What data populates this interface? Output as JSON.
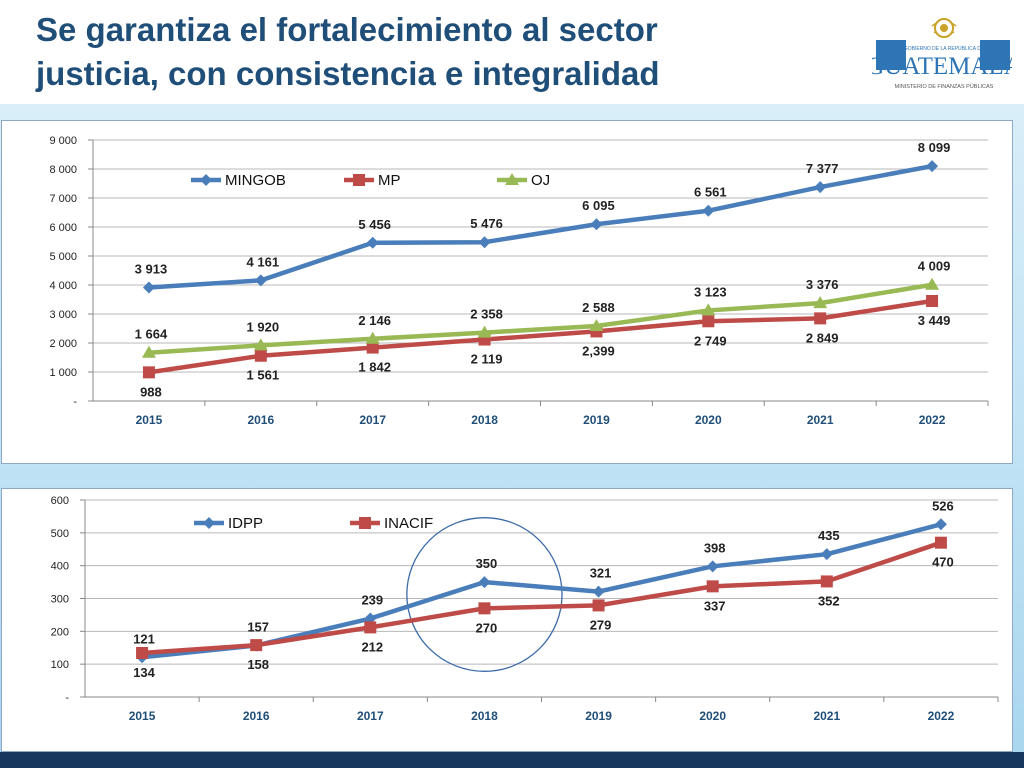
{
  "slide": {
    "title_line1": "Se garantiza el fortalecimiento al sector",
    "title_line2": "justicia, con consistencia e integralidad"
  },
  "logo": {
    "top_text": "GOBIERNO DE LA REPÚBLICA DE",
    "name": "GUATEMALA",
    "sub_text": "MINISTERIO DE FINANZAS PÚBLICAS",
    "colors": {
      "blue": "#2e75b6",
      "gold": "#c9a227"
    }
  },
  "chart_data": [
    {
      "type": "line",
      "categories": [
        "2015",
        "2016",
        "2017",
        "2018",
        "2019",
        "2020",
        "2021",
        "2022"
      ],
      "y_ticks": [
        "-",
        "1 000",
        "2 000",
        "3 000",
        "4 000",
        "5 000",
        "6 000",
        "7 000",
        "8 000",
        "9 000"
      ],
      "ylim": [
        0,
        9000
      ],
      "grid": true,
      "legend_position": "top-left",
      "series": [
        {
          "name": "MINGOB",
          "color": "#4a7ebb",
          "marker": "diamond",
          "values": [
            3913,
            4161,
            5456,
            5476,
            6095,
            6561,
            7377,
            8099
          ],
          "labels": [
            "3 913",
            "4 161",
            "5 456",
            "5 476",
            "6 095",
            "6 561",
            "7 377",
            "8 099"
          ],
          "label_pos": "above"
        },
        {
          "name": "MP",
          "color": "#be4b48",
          "marker": "square",
          "values": [
            988,
            1561,
            1842,
            2119,
            2399,
            2749,
            2849,
            3449
          ],
          "labels": [
            "988",
            "1 561",
            "1 842",
            "2 119",
            "2,399",
            "2 749",
            "2 849",
            "3 449"
          ],
          "label_pos": "below"
        },
        {
          "name": "OJ",
          "color": "#98b954",
          "marker": "triangle",
          "values": [
            1664,
            1920,
            2146,
            2358,
            2588,
            3123,
            3376,
            4009
          ],
          "labels": [
            "1 664",
            "1 920",
            "2 146",
            "2 358",
            "2 588",
            "3 123",
            "3 376",
            "4 009"
          ],
          "label_pos": "above"
        }
      ]
    },
    {
      "type": "line",
      "categories": [
        "2015",
        "2016",
        "2017",
        "2018",
        "2019",
        "2020",
        "2021",
        "2022"
      ],
      "y_ticks": [
        "-",
        "100",
        "200",
        "300",
        "400",
        "500",
        "600"
      ],
      "ylim": [
        0,
        600
      ],
      "grid": true,
      "legend_position": "top-left",
      "highlight_category": "2018",
      "series": [
        {
          "name": "IDPP",
          "color": "#4a7ebb",
          "marker": "diamond",
          "values": [
            121,
            157,
            239,
            350,
            321,
            398,
            435,
            526
          ],
          "labels": [
            "121",
            "157",
            "239",
            "350",
            "321",
            "398",
            "435",
            "526"
          ],
          "label_pos": "above"
        },
        {
          "name": "INACIF",
          "color": "#be4b48",
          "marker": "square",
          "values": [
            134,
            158,
            212,
            270,
            279,
            337,
            352,
            470
          ],
          "labels": [
            "134",
            "158",
            "212",
            "270",
            "279",
            "337",
            "352",
            "470"
          ],
          "label_pos": "below"
        }
      ]
    }
  ]
}
